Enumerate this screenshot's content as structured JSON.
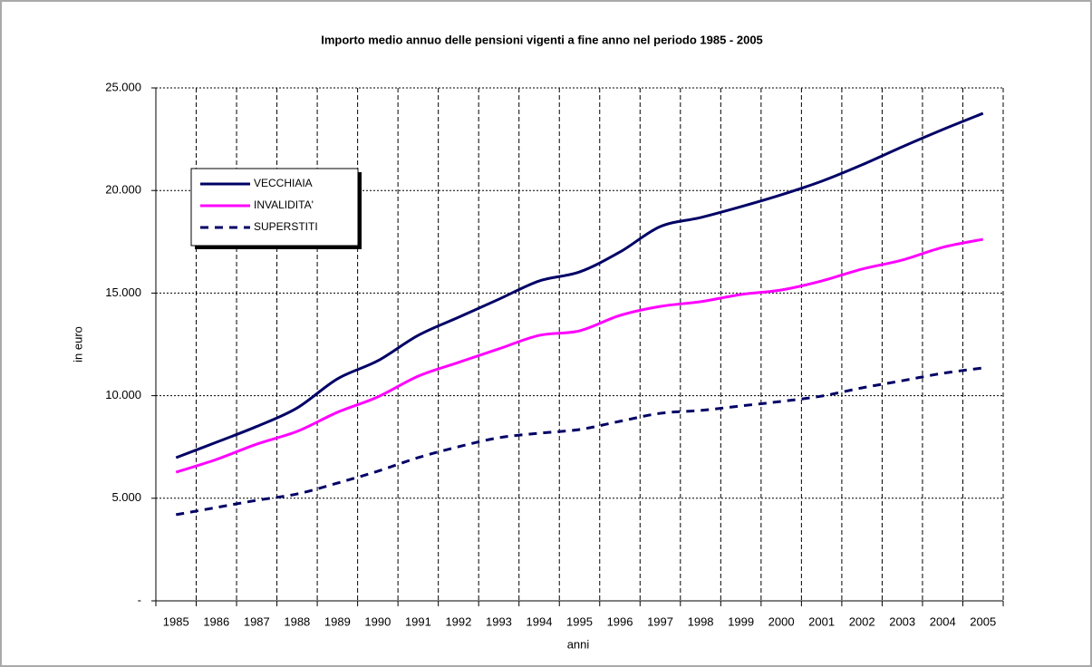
{
  "chart_data": {
    "type": "line",
    "title": "Importo medio annuo delle pensioni vigenti a fine anno nel periodo 1985 - 2005",
    "x_label": "anni",
    "y_label": "in euro",
    "categories": [
      "1985",
      "1986",
      "1987",
      "1988",
      "1989",
      "1990",
      "1991",
      "1992",
      "1993",
      "1994",
      "1995",
      "1996",
      "1997",
      "1998",
      "1999",
      "2000",
      "2001",
      "2002",
      "2003",
      "2004",
      "2005"
    ],
    "series": [
      {
        "name": "VECCHIAIA",
        "color": "#000066",
        "dash": false,
        "values": [
          6980,
          7730,
          8500,
          9400,
          10820,
          11700,
          12940,
          13820,
          14700,
          15590,
          16030,
          17000,
          18240,
          18680,
          19210,
          19790,
          20450,
          21250,
          22130,
          22970,
          23760
        ]
      },
      {
        "name": "INVALIDITA'",
        "color": "#ff00ff",
        "dash": false,
        "values": [
          6270,
          6890,
          7640,
          8260,
          9190,
          9940,
          10950,
          11620,
          12280,
          12940,
          13160,
          13910,
          14350,
          14580,
          14930,
          15150,
          15590,
          16170,
          16610,
          17230,
          17620
        ]
      },
      {
        "name": "SUPERSTITI",
        "color": "#000066",
        "dash": true,
        "values": [
          4200,
          4550,
          4900,
          5210,
          5740,
          6320,
          6980,
          7510,
          7950,
          8170,
          8350,
          8750,
          9140,
          9280,
          9500,
          9720,
          9980,
          10380,
          10730,
          11090,
          11350
        ]
      }
    ],
    "ylim": [
      0,
      25000
    ],
    "yticks": [
      {
        "value": 0,
        "label": "-"
      },
      {
        "value": 5000,
        "label": "5.000"
      },
      {
        "value": 10000,
        "label": "10.000"
      },
      {
        "value": 15000,
        "label": "15.000"
      },
      {
        "value": 20000,
        "label": "20.000"
      },
      {
        "value": 25000,
        "label": "25.000"
      }
    ],
    "grid": true
  }
}
